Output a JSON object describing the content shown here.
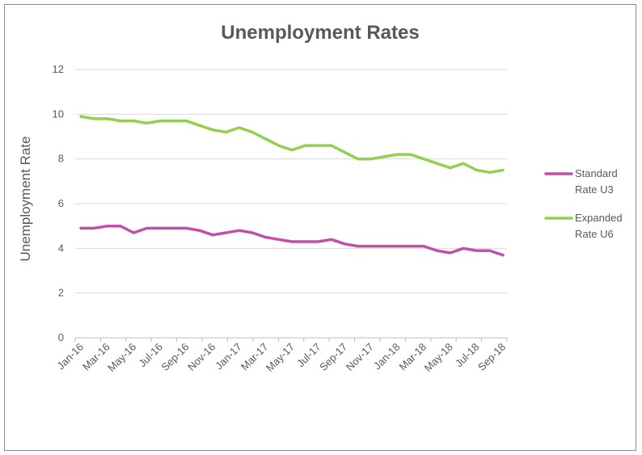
{
  "chart_data": {
    "type": "line",
    "title": "Unemployment Rates",
    "xlabel": "",
    "ylabel": "Unemployment Rate",
    "ylim": [
      0,
      12
    ],
    "yticks": [
      0,
      2,
      4,
      6,
      8,
      10,
      12
    ],
    "grid": true,
    "legend_position": "right",
    "x": [
      "Jan-16",
      "Feb-16",
      "Mar-16",
      "Apr-16",
      "May-16",
      "Jun-16",
      "Jul-16",
      "Aug-16",
      "Sep-16",
      "Oct-16",
      "Nov-16",
      "Dec-16",
      "Jan-17",
      "Feb-17",
      "Mar-17",
      "Apr-17",
      "May-17",
      "Jun-17",
      "Jul-17",
      "Aug-17",
      "Sep-17",
      "Oct-17",
      "Nov-17",
      "Dec-17",
      "Jan-18",
      "Feb-18",
      "Mar-18",
      "Apr-18",
      "May-18",
      "Jun-18",
      "Jul-18",
      "Aug-18",
      "Sep-18"
    ],
    "x_tick_labels": [
      "Jan-16",
      "Mar-16",
      "May-16",
      "Jul-16",
      "Sep-16",
      "Nov-16",
      "Jan-17",
      "Mar-17",
      "May-17",
      "Jul-17",
      "Sep-17",
      "Nov-17",
      "Jan-18",
      "Mar-18",
      "May-18",
      "Jul-18",
      "Sep-18"
    ],
    "series": [
      {
        "name": "Standard Rate U3",
        "legend_lines": [
          "Standard",
          "Rate U3"
        ],
        "color": "#c44fa8",
        "values": [
          4.9,
          4.9,
          5.0,
          5.0,
          4.7,
          4.9,
          4.9,
          4.9,
          4.9,
          4.8,
          4.6,
          4.7,
          4.8,
          4.7,
          4.5,
          4.4,
          4.3,
          4.3,
          4.3,
          4.4,
          4.2,
          4.1,
          4.1,
          4.1,
          4.1,
          4.1,
          4.1,
          3.9,
          3.8,
          4.0,
          3.9,
          3.9,
          3.7
        ]
      },
      {
        "name": "Expanded Rate U6",
        "legend_lines": [
          "Expanded",
          "Rate U6"
        ],
        "color": "#92d050",
        "values": [
          9.9,
          9.8,
          9.8,
          9.7,
          9.7,
          9.6,
          9.7,
          9.7,
          9.7,
          9.5,
          9.3,
          9.2,
          9.4,
          9.2,
          8.9,
          8.6,
          8.4,
          8.6,
          8.6,
          8.6,
          8.3,
          8.0,
          8.0,
          8.1,
          8.2,
          8.2,
          8.0,
          7.8,
          7.6,
          7.8,
          7.5,
          7.4,
          7.5
        ]
      }
    ]
  },
  "colors": {
    "gridline": "#d9d9d9",
    "axis": "#bfbfbf",
    "text": "#595959",
    "border": "#8c8c8c"
  }
}
